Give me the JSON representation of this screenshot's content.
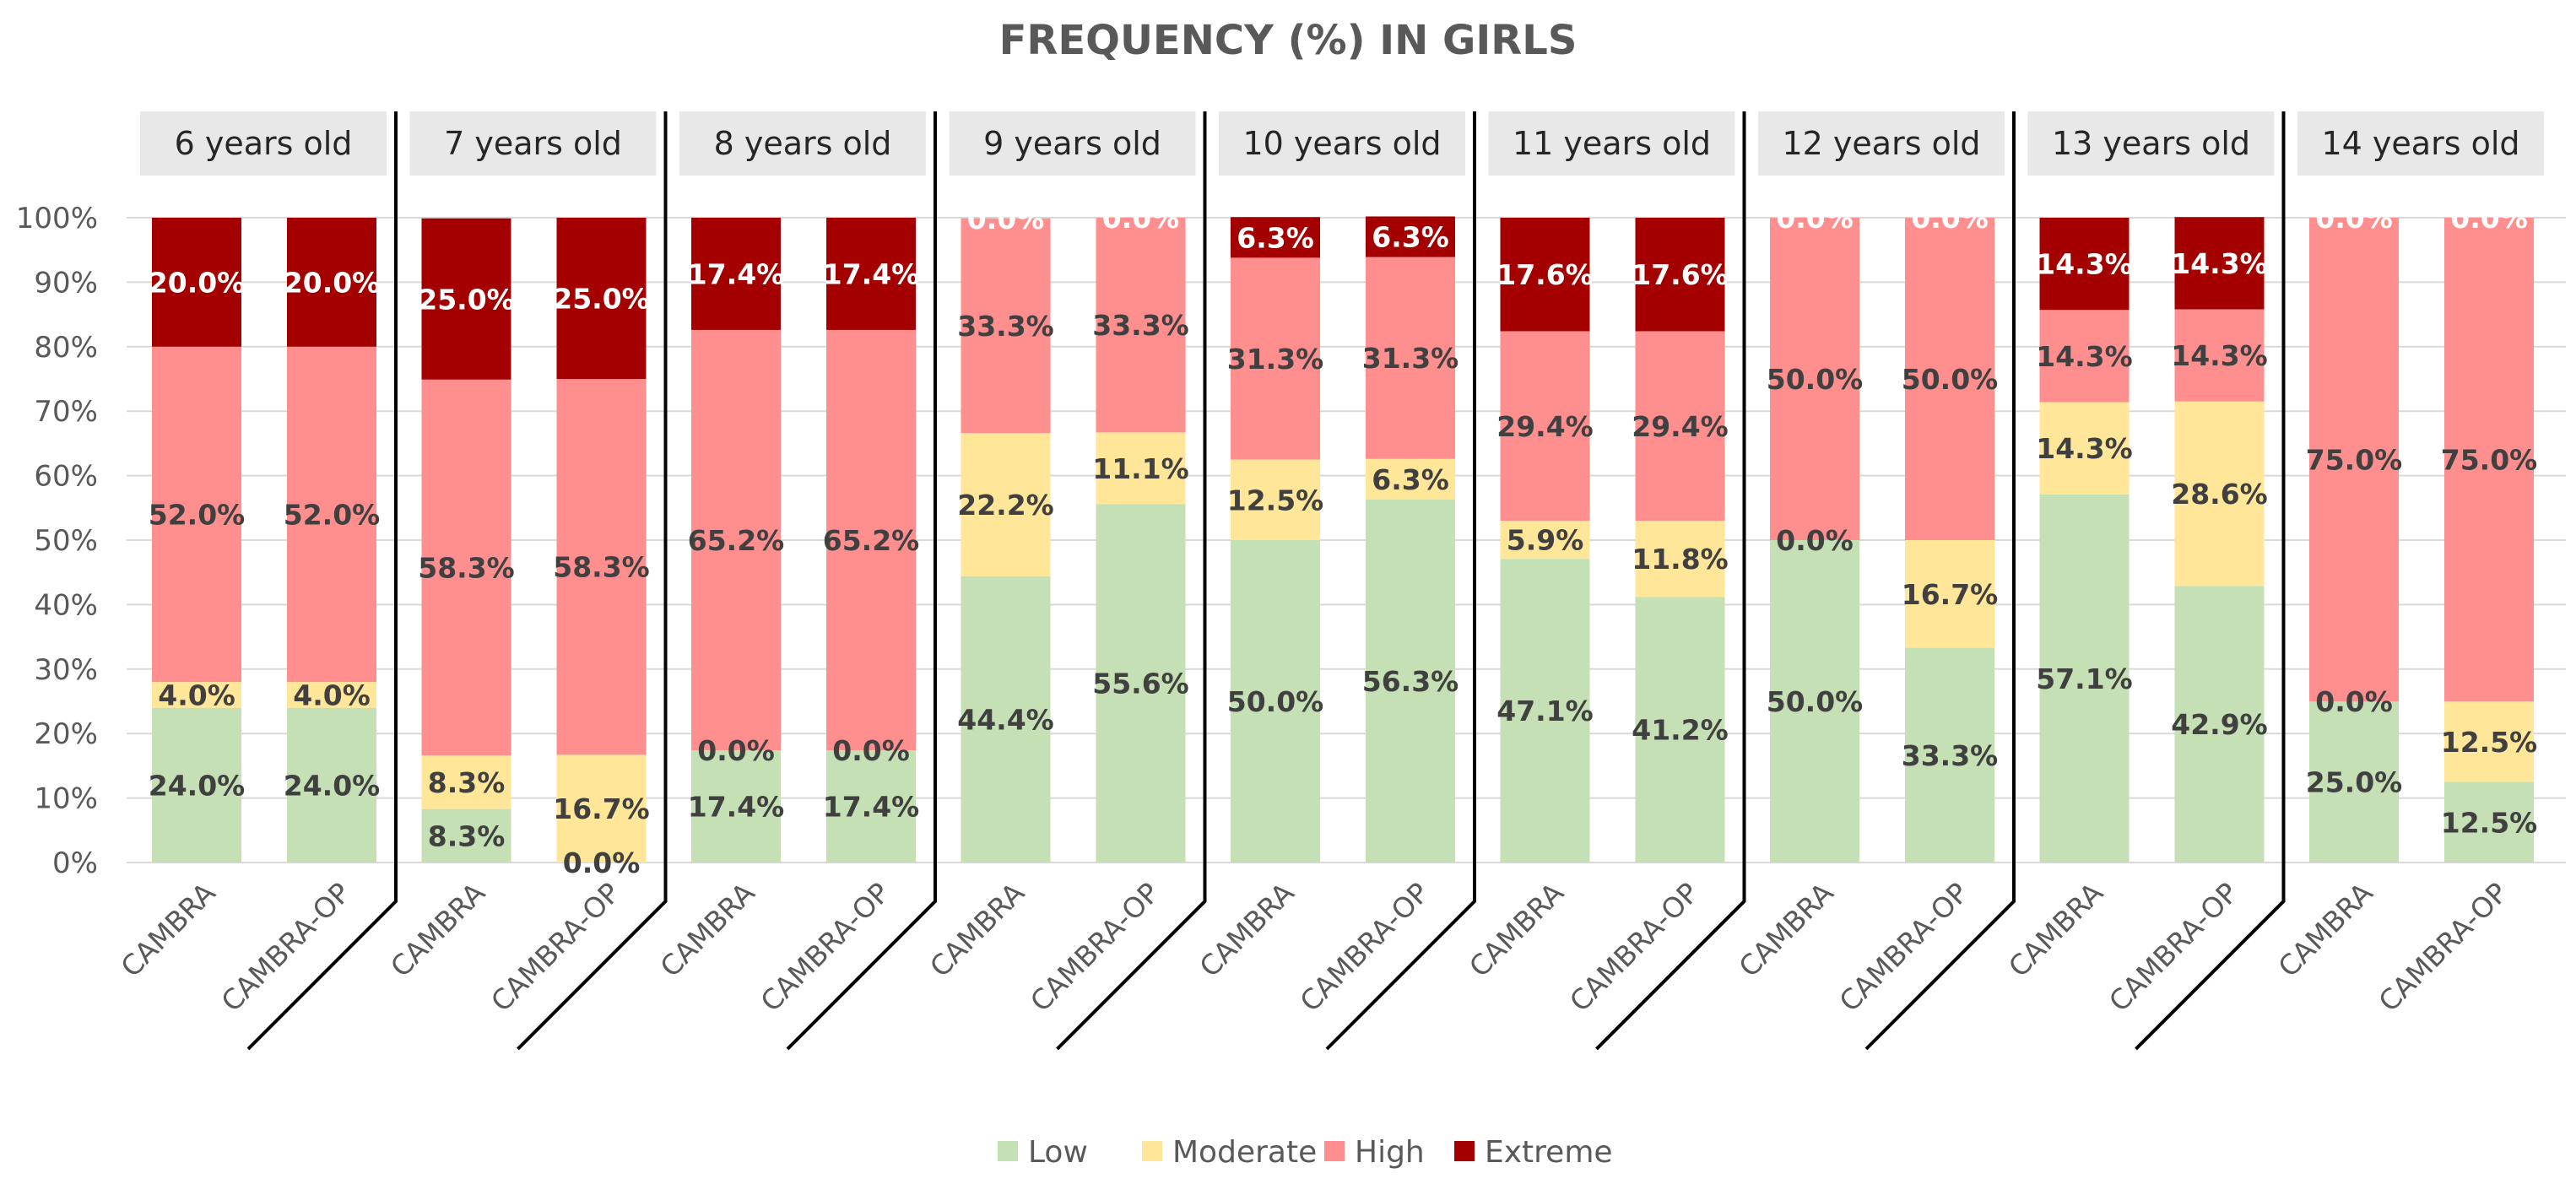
{
  "chart_data": {
    "type": "stacked-bar",
    "title": "FREQUENCY (%) IN GIRLS",
    "ylim": [
      0,
      100
    ],
    "y_ticks": [
      "0%",
      "10%",
      "20%",
      "30%",
      "40%",
      "50%",
      "60%",
      "70%",
      "80%",
      "90%",
      "100%"
    ],
    "legend_position": "bottom",
    "series": [
      {
        "name": "Low",
        "color": "#c5e0b4"
      },
      {
        "name": "Moderate",
        "color": "#ffe699"
      },
      {
        "name": "High",
        "color": "#ff8f8f"
      },
      {
        "name": "Extreme",
        "color": "#a50000"
      }
    ],
    "groups": [
      {
        "label": "6 years old",
        "bars": [
          {
            "category": "CAMBRA",
            "values": [
              24.0,
              4.0,
              52.0,
              20.0
            ],
            "labels": [
              "24.0%",
              "4.0%",
              "52.0%",
              "20.0%"
            ]
          },
          {
            "category": "CAMBRA-OP",
            "values": [
              24.0,
              4.0,
              52.0,
              20.0
            ],
            "labels": [
              "24.0%",
              "4.0%",
              "52.0%",
              "20.0%"
            ]
          }
        ]
      },
      {
        "label": "7 years old",
        "bars": [
          {
            "category": "CAMBRA",
            "values": [
              8.3,
              8.3,
              58.3,
              25.0
            ],
            "labels": [
              "8.3%",
              "8.3%",
              "58.3%",
              "25.0%"
            ]
          },
          {
            "category": "CAMBRA-OP",
            "values": [
              0.0,
              16.7,
              58.3,
              25.0
            ],
            "labels": [
              "0.0%",
              "16.7%",
              "58.3%",
              "25.0%"
            ]
          }
        ]
      },
      {
        "label": "8 years old",
        "bars": [
          {
            "category": "CAMBRA",
            "values": [
              17.4,
              0.0,
              65.2,
              17.4
            ],
            "labels": [
              "17.4%",
              "0.0%",
              "65.2%",
              "17.4%"
            ]
          },
          {
            "category": "CAMBRA-OP",
            "values": [
              17.4,
              0.0,
              65.2,
              17.4
            ],
            "labels": [
              "17.4%",
              "0.0%",
              "65.2%",
              "17.4%"
            ]
          }
        ]
      },
      {
        "label": "9 years old",
        "bars": [
          {
            "category": "CAMBRA",
            "values": [
              44.4,
              22.2,
              33.3,
              0.0
            ],
            "labels": [
              "44.4%",
              "22.2%",
              "33.3%",
              "0.0%"
            ]
          },
          {
            "category": "CAMBRA-OP",
            "values": [
              55.6,
              11.1,
              33.3,
              0.0
            ],
            "labels": [
              "55.6%",
              "11.1%",
              "33.3%",
              "0.0%"
            ]
          }
        ]
      },
      {
        "label": "10 years old",
        "bars": [
          {
            "category": "CAMBRA",
            "values": [
              50.0,
              12.5,
              31.3,
              6.3
            ],
            "labels": [
              "50.0%",
              "12.5%",
              "31.3%",
              "6.3%"
            ]
          },
          {
            "category": "CAMBRA-OP",
            "values": [
              56.3,
              6.3,
              31.3,
              6.3
            ],
            "labels": [
              "56.3%",
              "6.3%",
              "31.3%",
              "6.3%"
            ]
          }
        ]
      },
      {
        "label": "11 years old",
        "bars": [
          {
            "category": "CAMBRA",
            "values": [
              47.1,
              5.9,
              29.4,
              17.6
            ],
            "labels": [
              "47.1%",
              "5.9%",
              "29.4%",
              "17.6%"
            ]
          },
          {
            "category": "CAMBRA-OP",
            "values": [
              41.2,
              11.8,
              29.4,
              17.6
            ],
            "labels": [
              "41.2%",
              "11.8%",
              "29.4%",
              "17.6%"
            ]
          }
        ]
      },
      {
        "label": "12 years old",
        "bars": [
          {
            "category": "CAMBRA",
            "values": [
              50.0,
              0.0,
              50.0,
              0.0
            ],
            "labels": [
              "50.0%",
              "0.0%",
              "50.0%",
              "0.0%"
            ]
          },
          {
            "category": "CAMBRA-OP",
            "values": [
              33.3,
              16.7,
              50.0,
              0.0
            ],
            "labels": [
              "33.3%",
              "16.7%",
              "50.0%",
              "0.0%"
            ]
          }
        ]
      },
      {
        "label": "13 years old",
        "bars": [
          {
            "category": "CAMBRA",
            "values": [
              57.1,
              14.3,
              14.3,
              14.3
            ],
            "labels": [
              "57.1%",
              "14.3%",
              "14.3%",
              "14.3%"
            ]
          },
          {
            "category": "CAMBRA-OP",
            "values": [
              42.9,
              28.6,
              14.3,
              14.3
            ],
            "labels": [
              "42.9%",
              "28.6%",
              "14.3%",
              "14.3%"
            ]
          }
        ]
      },
      {
        "label": "14 years old",
        "bars": [
          {
            "category": "CAMBRA",
            "values": [
              25.0,
              0.0,
              75.0,
              0.0
            ],
            "labels": [
              "25.0%",
              "0.0%",
              "75.0%",
              "0.0%"
            ]
          },
          {
            "category": "CAMBRA-OP",
            "values": [
              12.5,
              12.5,
              75.0,
              0.0
            ],
            "labels": [
              "12.5%",
              "12.5%",
              "75.0%",
              "0.0%"
            ]
          }
        ]
      }
    ]
  }
}
